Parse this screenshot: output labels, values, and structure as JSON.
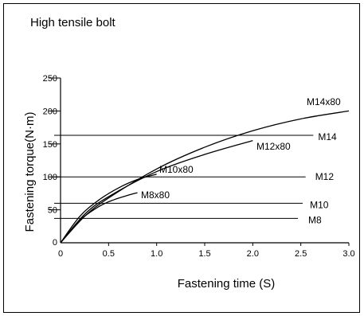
{
  "chart_data": {
    "type": "line",
    "title": "High tensile bolt",
    "xlabel": "Fastening time (S)",
    "ylabel": "Fastening torque(N·m)",
    "xlim": [
      0,
      3.0
    ],
    "ylim": [
      0,
      250
    ],
    "x_ticks": [
      "0",
      "0.5",
      "1.0",
      "1.5",
      "2.0",
      "2.5",
      "3.0"
    ],
    "y_ticks": [
      "0",
      "50",
      "100",
      "150",
      "200",
      "250"
    ],
    "grid": false,
    "legend": "none",
    "reference_lines": [
      {
        "name": "M14",
        "y": 163,
        "x_end": 2.63
      },
      {
        "name": "M12",
        "y": 100,
        "x_end": 2.55
      },
      {
        "name": "M10",
        "y": 60,
        "x_end": 2.52
      },
      {
        "name": "M8",
        "y": 37,
        "x_end": 2.47
      }
    ],
    "series": [
      {
        "name": "M14x80",
        "x": [
          0,
          0.25,
          0.5,
          1.0,
          1.5,
          2.0,
          2.5,
          3.0
        ],
        "y": [
          0,
          40,
          68,
          112,
          145,
          170,
          188,
          200
        ]
      },
      {
        "name": "M12x80",
        "x": [
          0,
          0.25,
          0.5,
          1.0,
          1.5,
          2.0
        ],
        "y": [
          0,
          43,
          70,
          108,
          134,
          155
        ]
      },
      {
        "name": "M10x80",
        "x": [
          0,
          0.2,
          0.4,
          0.6,
          0.8,
          1.0
        ],
        "y": [
          0,
          40,
          65,
          83,
          96,
          104
        ]
      },
      {
        "name": "M8x80",
        "x": [
          0,
          0.2,
          0.4,
          0.55,
          0.7,
          0.8
        ],
        "y": [
          0,
          34,
          55,
          65,
          72,
          76
        ]
      }
    ]
  }
}
